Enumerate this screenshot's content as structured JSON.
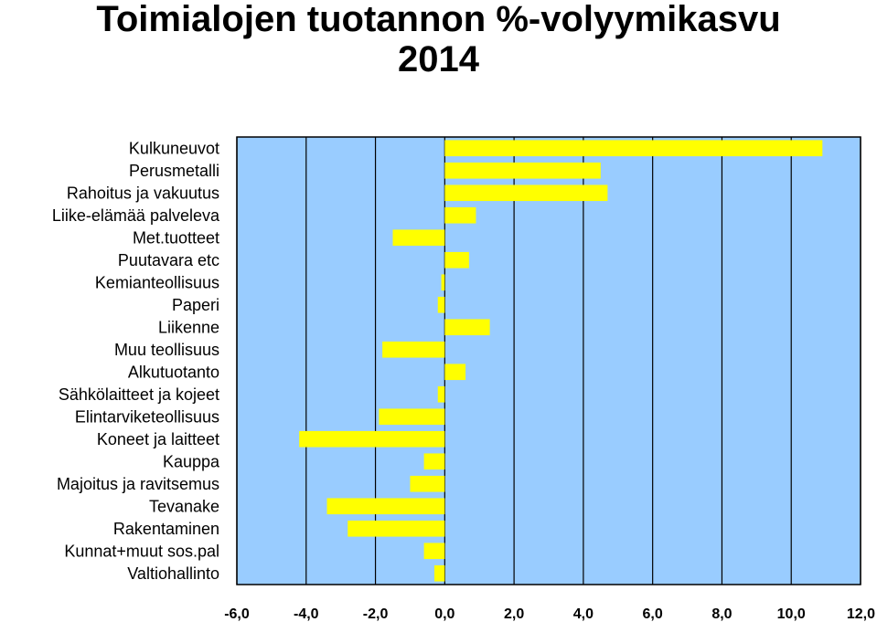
{
  "chart_data": {
    "type": "bar",
    "orientation": "horizontal",
    "title_line1": "Toimialojen tuotannon %-volyymikasvu",
    "title_line2": "2014",
    "categories": [
      "Kulkuneuvot",
      "Perusmetalli",
      "Rahoitus ja vakuutus",
      "Liike-elämää palveleva",
      "Met.tuotteet",
      "Puutavara etc",
      "Kemianteollisuus",
      "Paperi",
      "Liikenne",
      "Muu teollisuus",
      "Alkutuotanto",
      "Sähkölaitteet ja kojeet",
      "Elintarviketeollisuus",
      "Koneet ja laitteet",
      "Kauppa",
      "Majoitus ja ravitsemus",
      "Tevanake",
      "Rakentaminen",
      "Kunnat+muut sos.pal",
      "Valtiohallinto"
    ],
    "values": [
      10.9,
      4.5,
      4.7,
      0.9,
      -1.5,
      0.7,
      -0.1,
      -0.2,
      1.3,
      -1.8,
      0.6,
      -0.2,
      -1.9,
      -4.2,
      -0.6,
      -1.0,
      -3.4,
      -2.8,
      -0.6,
      -0.3
    ],
    "xlim": [
      -6,
      12
    ],
    "xticks": [
      "-6,0",
      "-4,0",
      "-2,0",
      "0,0",
      "2,0",
      "4,0",
      "6,0",
      "8,0",
      "10,0",
      "12,0"
    ],
    "xtick_values": [
      -6,
      -4,
      -2,
      0,
      2,
      4,
      6,
      8,
      10,
      12
    ],
    "grid": true,
    "colors": {
      "plot_background": "#99ccff",
      "bar_fill": "#ffff00",
      "gridline": "#000000"
    }
  }
}
